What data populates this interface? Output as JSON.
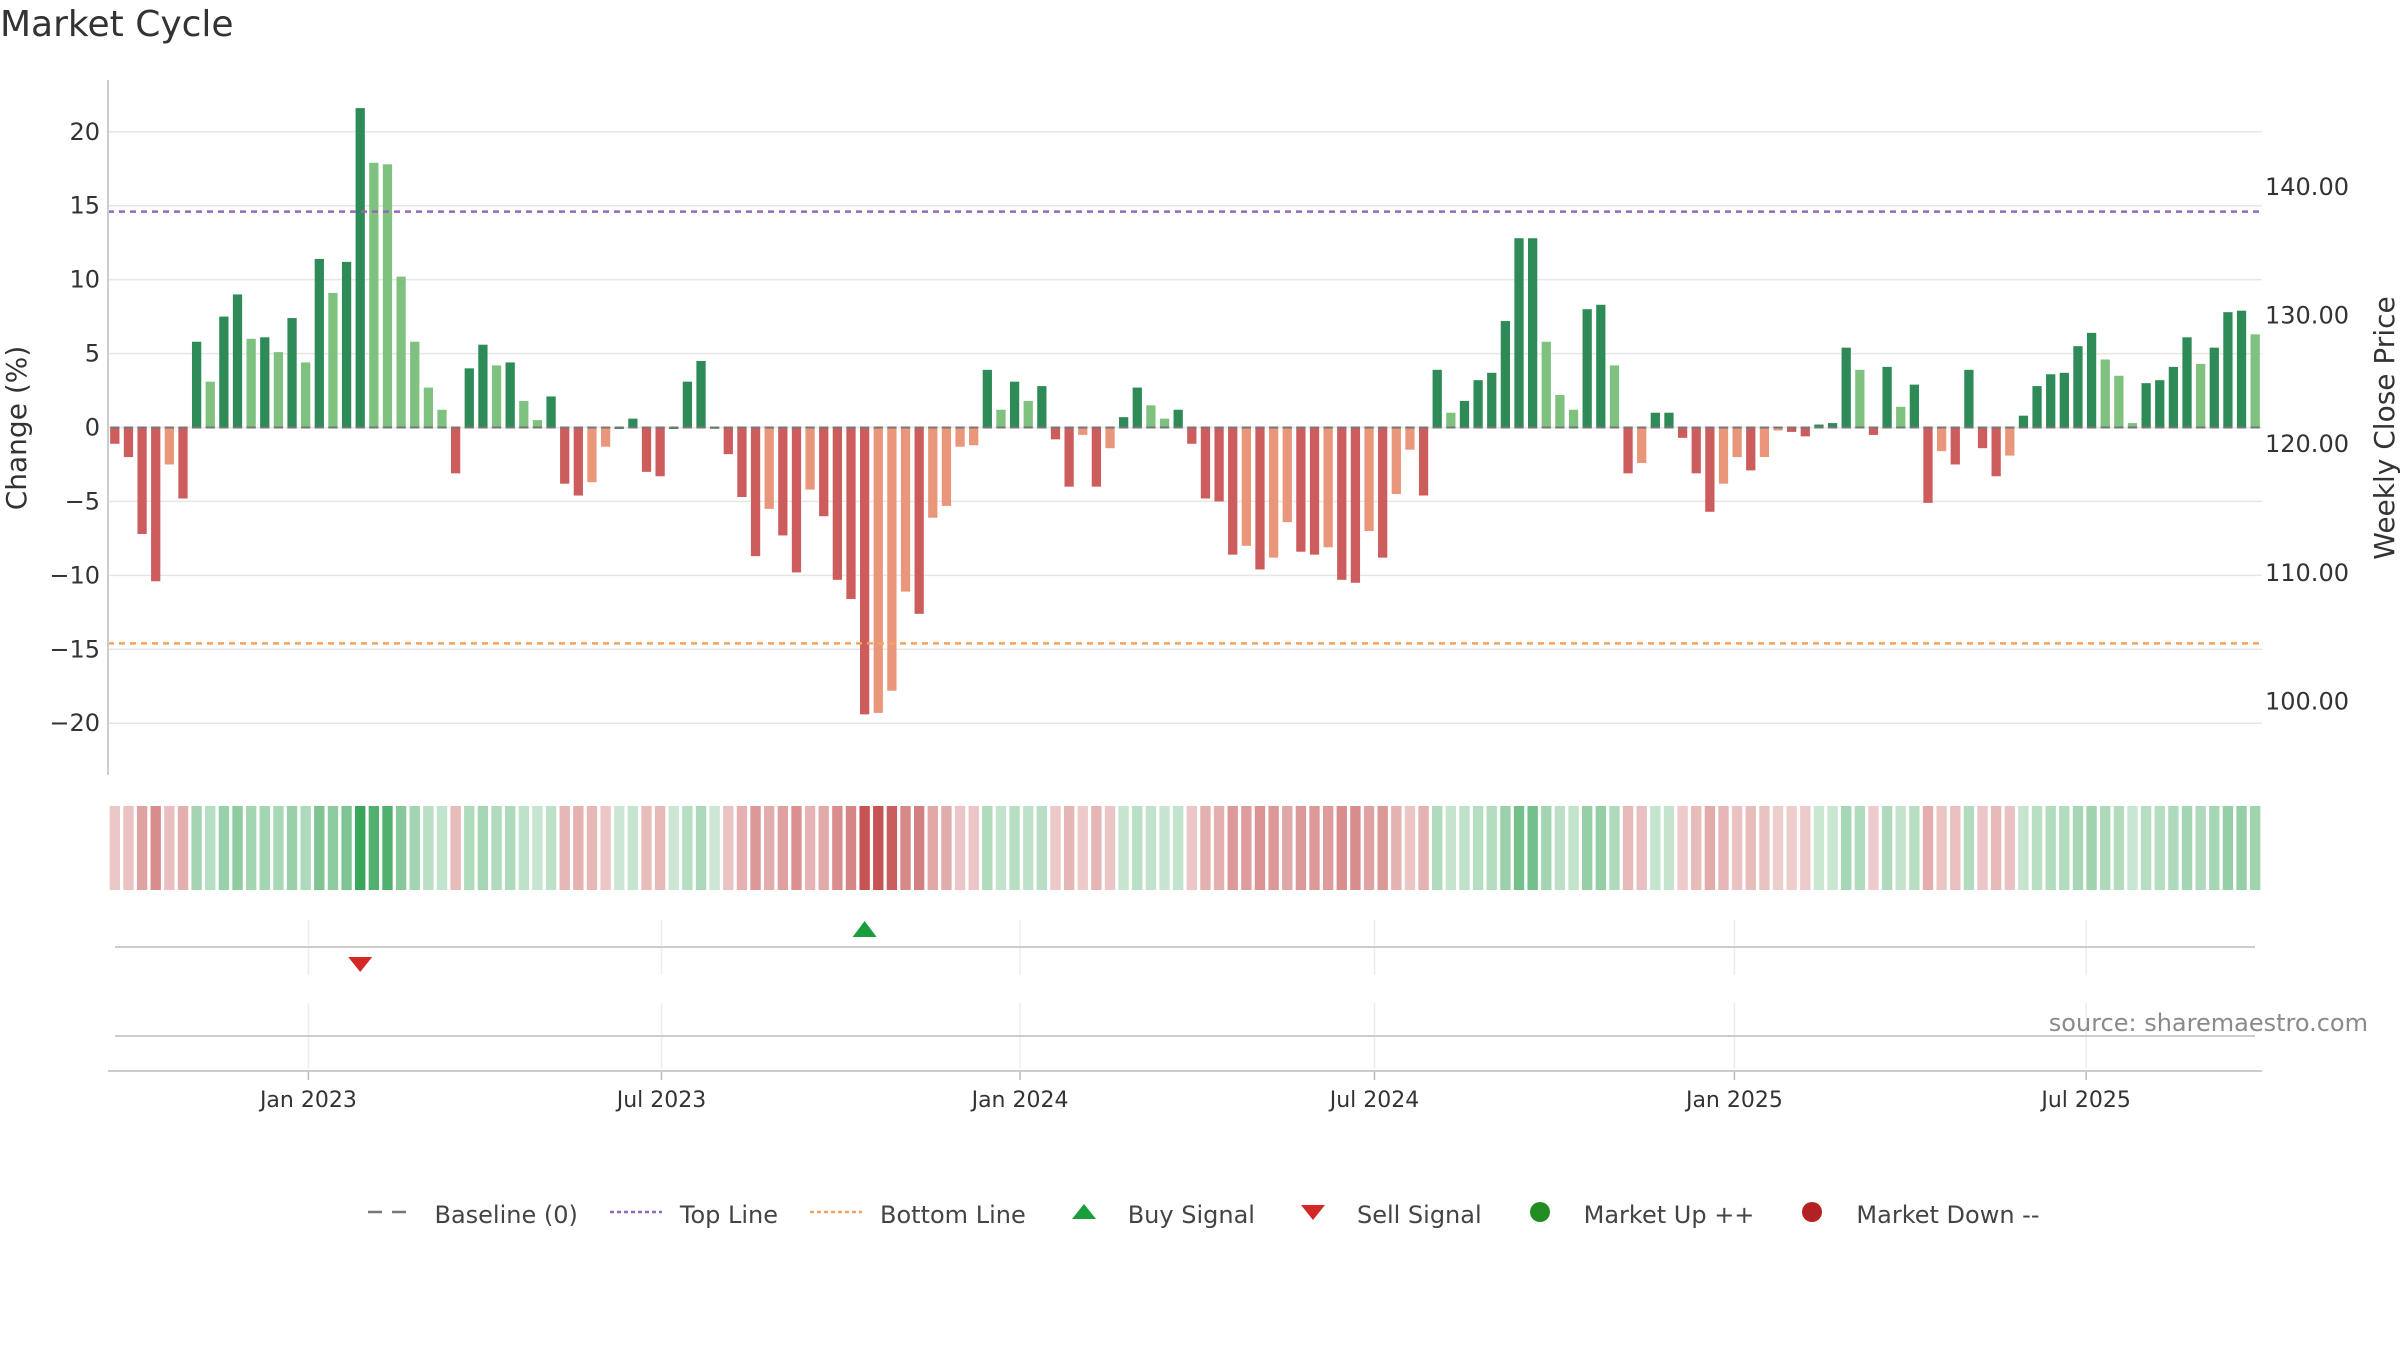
{
  "title": "Market Cycle",
  "source": "source: sharemaestro.com",
  "colors": {
    "strong_up": "#2e8b57",
    "weak_up": "#7fc27f",
    "strong_down": "#cd5c5c",
    "weak_down": "#e9967a",
    "top_line": "#9467bd",
    "bottom_line": "#f4a261",
    "buy": "#1a9e3c",
    "sell": "#d62728",
    "grid": "#e6e6e6",
    "axis": "#cccccc"
  },
  "legend": [
    {
      "key": "baseline",
      "label": "Baseline (0)"
    },
    {
      "key": "top",
      "label": "Top Line"
    },
    {
      "key": "bottom",
      "label": "Bottom Line"
    },
    {
      "key": "buy",
      "label": "Buy Signal"
    },
    {
      "key": "sell",
      "label": "Sell Signal"
    },
    {
      "key": "up",
      "label": "Market Up ++"
    },
    {
      "key": "down",
      "label": "Market Down --"
    }
  ],
  "chart_data": {
    "type": "bar",
    "title": "Market Cycle",
    "ylabel": "Change (%)",
    "y2label": "Weekly Close Price",
    "ylim": [
      -23.5,
      23.5
    ],
    "y2lim": [
      94.27,
      148.33
    ],
    "yticks": [
      20,
      15,
      10,
      5,
      0,
      -5,
      -10,
      -15,
      -20
    ],
    "ytick_labels": [
      "20",
      "15",
      "10",
      "5",
      "0",
      "−5",
      "−10",
      "−15",
      "−20"
    ],
    "y2ticks": [
      100,
      110,
      120,
      130,
      140
    ],
    "y2tick_labels": [
      "100.00",
      "110.00",
      "120.00",
      "130.00",
      "140.00"
    ],
    "top_line": 14.6,
    "bottom_line": -14.6,
    "x_start": "2022-10-17",
    "week_step": 7,
    "x_ticks": [
      {
        "label": "Jan 2023",
        "week": 14.7
      },
      {
        "label": "Jul 2023",
        "week": 40.6
      },
      {
        "label": "Jan 2024",
        "week": 66.9
      },
      {
        "label": "Jul 2024",
        "week": 92.9
      },
      {
        "label": "Jan 2025",
        "week": 119.3
      },
      {
        "label": "Jul 2025",
        "week": 145.1
      }
    ],
    "values": [
      -1.1,
      -2.0,
      -7.2,
      -10.4,
      -2.5,
      -4.8,
      5.8,
      3.1,
      7.5,
      9.0,
      6.0,
      6.1,
      5.1,
      7.4,
      4.4,
      11.4,
      9.1,
      11.2,
      21.6,
      17.9,
      17.8,
      10.2,
      5.8,
      2.7,
      1.2,
      -3.1,
      4.0,
      5.6,
      4.2,
      4.4,
      1.8,
      0.5,
      2.1,
      -3.8,
      -4.6,
      -3.7,
      -1.3,
      0.0,
      0.6,
      -3.0,
      -3.3,
      0.0,
      3.1,
      4.5,
      0.0,
      -1.8,
      -4.7,
      -8.7,
      -5.5,
      -7.3,
      -9.8,
      -4.2,
      -6.0,
      -10.3,
      -11.6,
      -19.4,
      -19.3,
      -17.8,
      -11.1,
      -12.6,
      -6.1,
      -5.3,
      -1.3,
      -1.2,
      3.9,
      1.2,
      3.1,
      1.8,
      2.8,
      -0.8,
      -4.0,
      -0.5,
      -4.0,
      -1.4,
      0.7,
      2.7,
      1.5,
      0.6,
      1.2,
      -1.1,
      -4.8,
      -5.0,
      -8.6,
      -8.0,
      -9.6,
      -8.8,
      -6.4,
      -8.4,
      -8.6,
      -8.1,
      -10.3,
      -10.5,
      -7.0,
      -8.8,
      -4.5,
      -1.5,
      -4.6,
      3.9,
      1.0,
      1.8,
      3.2,
      3.7,
      7.2,
      12.8,
      12.8,
      5.8,
      2.2,
      1.2,
      8.0,
      8.3,
      4.2,
      -3.1,
      -2.4,
      1.0,
      1.0,
      -0.7,
      -3.1,
      -5.7,
      -3.8,
      -2.0,
      -2.9,
      -2.0,
      -0.2,
      -0.3,
      -0.6,
      0.2,
      0.3,
      5.4,
      3.9,
      -0.5,
      4.1,
      1.4,
      2.9,
      -5.1,
      -1.6,
      -2.5,
      3.9,
      -1.4,
      -3.3,
      -1.9,
      0.8,
      2.8,
      3.6,
      3.7,
      5.5,
      6.4,
      4.6,
      3.5,
      0.3,
      3.0,
      3.2,
      4.1,
      6.1,
      4.3,
      5.4,
      7.8,
      7.9,
      6.3
    ],
    "signals": [
      {
        "type": "sell",
        "week": 18
      },
      {
        "type": "buy",
        "week": 55
      }
    ]
  }
}
